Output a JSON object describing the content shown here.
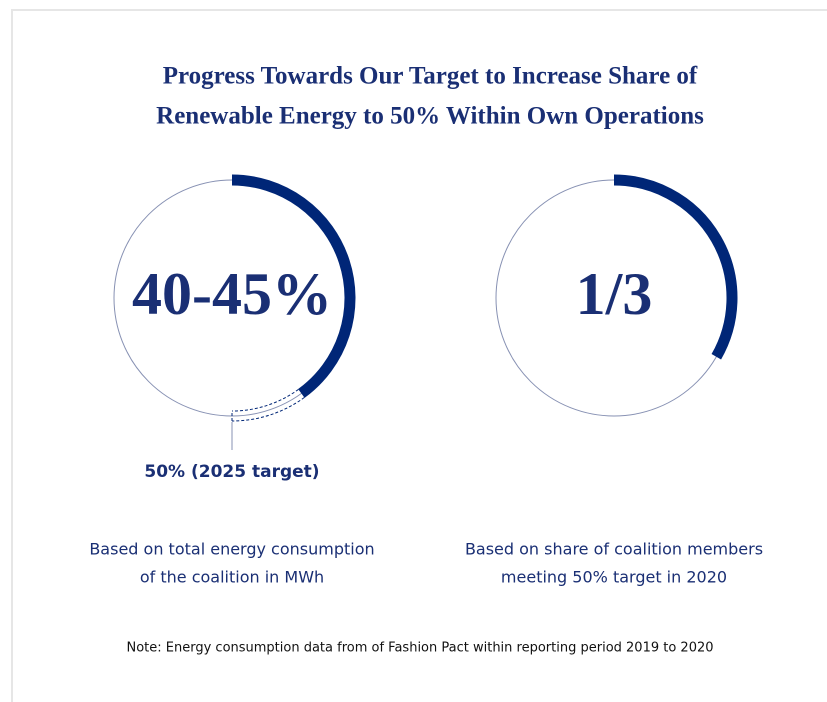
{
  "title": [
    "Progress Towards Our Target to Increase Share of",
    "Renewable Energy to 50% Within Own Operations"
  ],
  "gauges": [
    {
      "label": "40-45%",
      "value": 40,
      "max": 100,
      "target": 50,
      "target_label": "50% (2025 target)",
      "caption": [
        "Based on total energy consumption",
        "of the coalition in MWh"
      ]
    },
    {
      "label": "1/3",
      "value": 33.3,
      "max": 100,
      "caption": [
        "Based on share of coalition members",
        "meeting 50% target in 2020"
      ]
    }
  ],
  "color": "#002677",
  "note": "Note: Energy consumption data from of Fashion Pact within reporting period 2019 to 2020"
}
